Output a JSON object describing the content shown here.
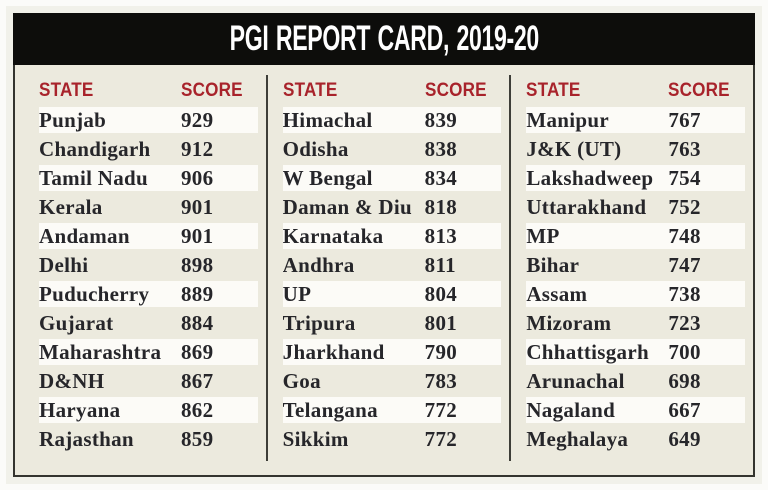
{
  "title": "PGI REPORT CARD, 2019-20",
  "table": {
    "state_header": "STATE",
    "score_header": "SCORE",
    "columns": [
      {
        "rows": [
          {
            "state": "Punjab",
            "score": "929"
          },
          {
            "state": "Chandigarh",
            "score": "912"
          },
          {
            "state": "Tamil Nadu",
            "score": "906"
          },
          {
            "state": "Kerala",
            "score": "901"
          },
          {
            "state": "Andaman",
            "score": "901"
          },
          {
            "state": "Delhi",
            "score": "898"
          },
          {
            "state": "Puducherry",
            "score": "889"
          },
          {
            "state": "Gujarat",
            "score": "884"
          },
          {
            "state": "Maharashtra",
            "score": "869"
          },
          {
            "state": "D&NH",
            "score": "867"
          },
          {
            "state": "Haryana",
            "score": "862"
          },
          {
            "state": "Rajasthan",
            "score": "859"
          }
        ]
      },
      {
        "rows": [
          {
            "state": "Himachal",
            "score": "839"
          },
          {
            "state": "Odisha",
            "score": "838"
          },
          {
            "state": "W Bengal",
            "score": "834"
          },
          {
            "state": "Daman & Diu",
            "score": "818"
          },
          {
            "state": "Karnataka",
            "score": "813"
          },
          {
            "state": "Andhra",
            "score": "811"
          },
          {
            "state": "UP",
            "score": "804"
          },
          {
            "state": "Tripura",
            "score": "801"
          },
          {
            "state": "Jharkhand",
            "score": "790"
          },
          {
            "state": "Goa",
            "score": "783"
          },
          {
            "state": "Telangana",
            "score": "772"
          },
          {
            "state": "Sikkim",
            "score": "772"
          }
        ]
      },
      {
        "rows": [
          {
            "state": "Manipur",
            "score": "767"
          },
          {
            "state": "J&K (UT)",
            "score": "763"
          },
          {
            "state": "Lakshadweep",
            "score": "754"
          },
          {
            "state": "Uttarakhand",
            "score": "752"
          },
          {
            "state": "MP",
            "score": "748"
          },
          {
            "state": "Bihar",
            "score": "747"
          },
          {
            "state": "Assam",
            "score": "738"
          },
          {
            "state": "Mizoram",
            "score": "723"
          },
          {
            "state": "Chhattisgarh",
            "score": "700"
          },
          {
            "state": "Arunachal",
            "score": "698"
          },
          {
            "state": "Nagaland",
            "score": "667"
          },
          {
            "state": "Meghalaya",
            "score": "649"
          }
        ]
      }
    ]
  },
  "colors": {
    "title_bar_bg": "#0d0d0b",
    "title_text": "#ffffff",
    "header_red": "#a8232b",
    "panel_bg": "#eceade",
    "stripe_white": "#fcfbf7",
    "body_text": "#26262a",
    "border_dark": "#34342f"
  },
  "chart_data": {
    "type": "table",
    "title": "PGI REPORT CARD, 2019-20",
    "columns": [
      "STATE",
      "SCORE"
    ],
    "rows": [
      [
        "Punjab",
        929
      ],
      [
        "Chandigarh",
        912
      ],
      [
        "Tamil Nadu",
        906
      ],
      [
        "Kerala",
        901
      ],
      [
        "Andaman",
        901
      ],
      [
        "Delhi",
        898
      ],
      [
        "Puducherry",
        889
      ],
      [
        "Gujarat",
        884
      ],
      [
        "Maharashtra",
        869
      ],
      [
        "D&NH",
        867
      ],
      [
        "Haryana",
        862
      ],
      [
        "Rajasthan",
        859
      ],
      [
        "Himachal",
        839
      ],
      [
        "Odisha",
        838
      ],
      [
        "W Bengal",
        834
      ],
      [
        "Daman & Diu",
        818
      ],
      [
        "Karnataka",
        813
      ],
      [
        "Andhra",
        811
      ],
      [
        "UP",
        804
      ],
      [
        "Tripura",
        801
      ],
      [
        "Jharkhand",
        790
      ],
      [
        "Goa",
        783
      ],
      [
        "Telangana",
        772
      ],
      [
        "Sikkim",
        772
      ],
      [
        "Manipur",
        767
      ],
      [
        "J&K (UT)",
        763
      ],
      [
        "Lakshadweep",
        754
      ],
      [
        "Uttarakhand",
        752
      ],
      [
        "MP",
        748
      ],
      [
        "Bihar",
        747
      ],
      [
        "Assam",
        738
      ],
      [
        "Mizoram",
        723
      ],
      [
        "Chhattisgarh",
        700
      ],
      [
        "Arunachal",
        698
      ],
      [
        "Nagaland",
        667
      ],
      [
        "Meghalaya",
        649
      ]
    ]
  }
}
